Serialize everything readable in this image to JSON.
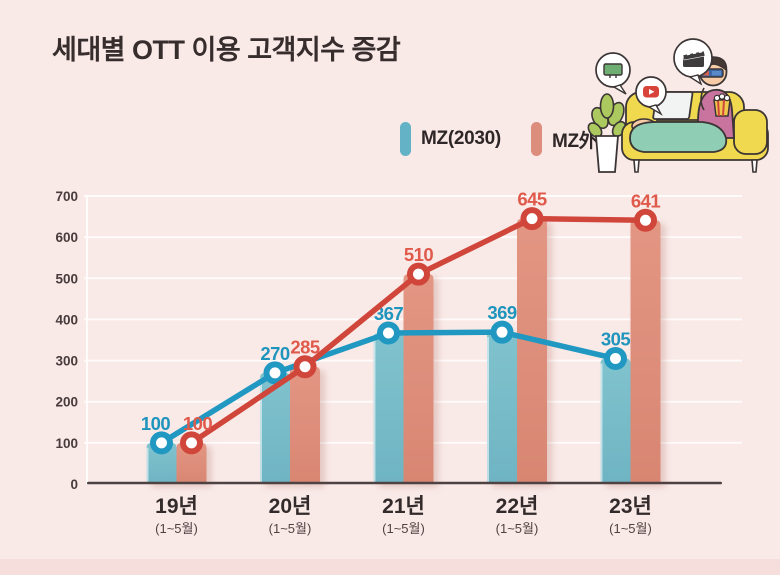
{
  "title": "세대별 OTT 이용 고객지수 증감",
  "legend": [
    {
      "label": "MZ(2030)",
      "color": "#63b2c5"
    },
    {
      "label": "MZ外",
      "color": "#dd8d7b"
    }
  ],
  "chart_data": {
    "type": "bar",
    "overlay": "line-with-markers",
    "title": "세대별 OTT 이용 고객지수 증감",
    "categories": [
      "19년",
      "20년",
      "21년",
      "22년",
      "23년"
    ],
    "category_sublabels": [
      "(1~5월)",
      "(1~5월)",
      "(1~5월)",
      "(1~5월)",
      "(1~5월)"
    ],
    "series": [
      {
        "name": "MZ(2030)",
        "values": [
          100,
          270,
          367,
          369,
          305
        ],
        "bar_color": "#6fb4c3",
        "bar_color_top": "#80c3ce",
        "line_color": "#2098c1",
        "label_color": "#1f95bd"
      },
      {
        "name": "MZ外",
        "values": [
          100,
          285,
          510,
          645,
          641
        ],
        "bar_color": "#d88672",
        "bar_color_top": "#e39683",
        "line_color": "#d0463a",
        "label_color": "#e05a4b"
      }
    ],
    "ylim": [
      0,
      700
    ],
    "yticks": [
      0,
      100,
      200,
      300,
      400,
      500,
      600,
      700
    ],
    "grid": true,
    "legend_position": "top-center",
    "xlabel": "",
    "ylabel": ""
  },
  "illustration_icons": [
    "tv-icon",
    "youtube-play-icon",
    "clapperboard-icon",
    "plant-icon",
    "sofa",
    "laptop-icon",
    "popcorn-icon",
    "person-with-3d-glasses"
  ],
  "colors": {
    "background": "#f9eae8",
    "footer_strip": "#f6dedc",
    "axis_line": "#4e4242",
    "tick_label": "#473b3b",
    "year_label": "#332b2b",
    "sub_label": "#4f4242",
    "gridline": "rgba(255,255,255,0.8)"
  }
}
